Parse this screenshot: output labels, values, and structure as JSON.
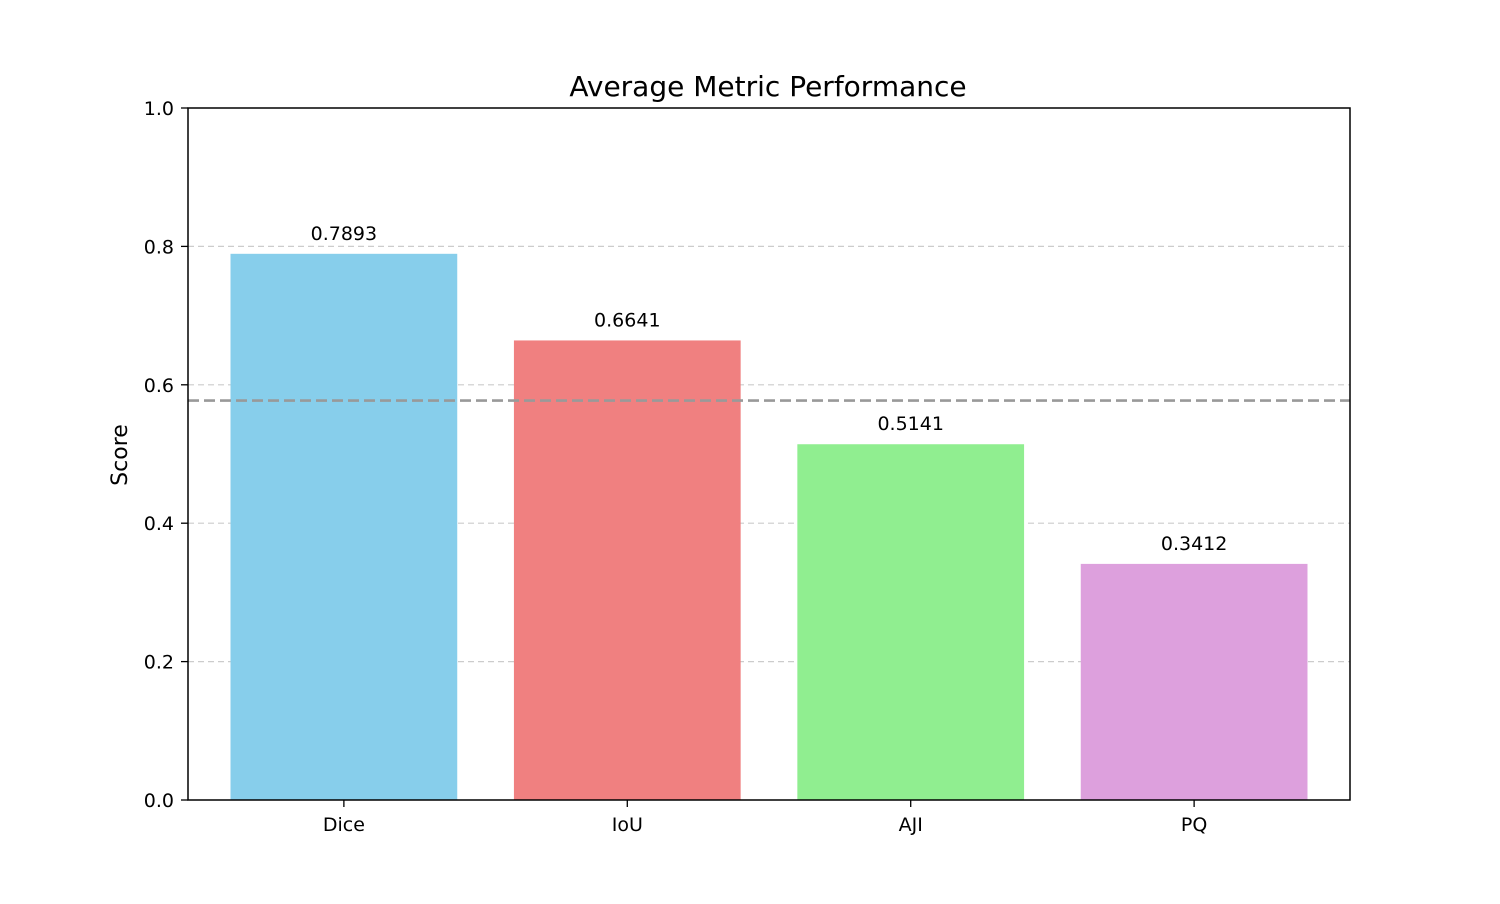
{
  "chart_data": {
    "type": "bar",
    "title": "Average Metric Performance",
    "xlabel": "",
    "ylabel": "Score",
    "ylim": [
      0,
      1.0
    ],
    "yticks": [
      "0.0",
      "0.2",
      "0.4",
      "0.6",
      "0.8",
      "1.0"
    ],
    "categories": [
      "Dice",
      "IoU",
      "AJI",
      "PQ"
    ],
    "values": [
      0.7893,
      0.6641,
      0.5141,
      0.3412
    ],
    "value_labels": [
      "0.7893",
      "0.6641",
      "0.5141",
      "0.3412"
    ],
    "colors": [
      "#87CEEB",
      "#F08080",
      "#90EE90",
      "#DDA0DD"
    ],
    "grid": "y-dashed",
    "reference_line": {
      "value": 0.5772,
      "color": "#999999",
      "style": "dashed"
    }
  }
}
